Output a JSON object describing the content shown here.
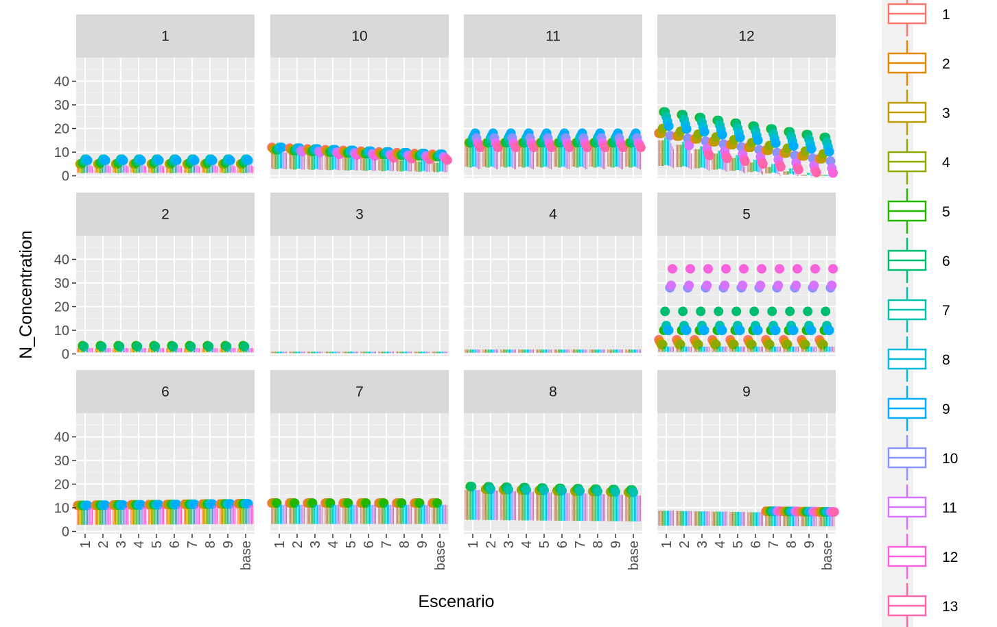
{
  "chart_data": {
    "type": "boxplot",
    "facet_by": "panel",
    "xlabel": "Escenario",
    "ylabel": "N_Concentration",
    "categories": [
      "1",
      "2",
      "3",
      "4",
      "5",
      "6",
      "7",
      "8",
      "9",
      "base"
    ],
    "yticks": [
      0,
      10,
      20,
      30,
      40
    ],
    "ylim": [
      -1,
      50
    ],
    "legend_position": "right",
    "legend": {
      "labels": [
        "1",
        "2",
        "3",
        "4",
        "5",
        "6",
        "7",
        "8",
        "9",
        "10",
        "11",
        "12",
        "13"
      ],
      "colors": [
        "#F8766D",
        "#E18A00",
        "#BE9C00",
        "#8CAB00",
        "#24B700",
        "#00BE70",
        "#00C1AB",
        "#00BBDA",
        "#00ACFC",
        "#8B93FF",
        "#D575FE",
        "#F962DD",
        "#FF65AC"
      ]
    },
    "facets": [
      {
        "panel": "1",
        "base": [
          3.5,
          4,
          3.5,
          3.2,
          3.2,
          3.3,
          3.3,
          3.5,
          3.5,
          4,
          3.5,
          3.5,
          3.2
        ],
        "outlier": [
          4.5,
          5,
          5,
          5,
          5.5,
          6,
          7,
          7,
          6.5,
          4.5,
          4.2,
          4,
          3.8
        ],
        "trend": 0
      },
      {
        "panel": "10",
        "base": [
          9,
          8.5,
          8,
          8,
          8,
          8,
          8.5,
          9,
          9,
          8.5,
          8,
          8,
          8
        ],
        "outlier": [
          12,
          11.5,
          11,
          11,
          11,
          11,
          12,
          12,
          12,
          11,
          10.5,
          10,
          9.5
        ],
        "trend": -0.4
      },
      {
        "panel": "11",
        "base": [
          11,
          11,
          11,
          10,
          10,
          10,
          11,
          11,
          11,
          10,
          9,
          8,
          8
        ],
        "outlier": [
          14,
          14,
          14,
          14,
          14,
          14,
          16,
          17,
          18,
          16,
          14,
          13,
          12
        ],
        "trend": 0
      },
      {
        "panel": "12",
        "base": [
          12,
          12,
          12,
          12,
          12,
          13,
          13,
          13,
          12,
          12,
          11,
          10,
          9
        ],
        "outlier": [
          18,
          18,
          18,
          20,
          27,
          27,
          25,
          23,
          21,
          17,
          14,
          12,
          11
        ],
        "trend": -1.5
      },
      {
        "panel": "2",
        "base": [
          2,
          2,
          2,
          2,
          2,
          2,
          2,
          2,
          2,
          2,
          2,
          2,
          2
        ],
        "outlier": [
          3,
          3,
          3,
          3,
          3.5,
          3.2,
          3,
          3,
          2.8,
          2.5,
          2.3,
          2.2,
          2.1
        ],
        "trend": 0
      },
      {
        "panel": "3",
        "base": [
          0.8,
          0.8,
          0.8,
          0.8,
          0.8,
          0.8,
          0.8,
          0.8,
          0.8,
          0.8,
          0.8,
          0.8,
          0.8
        ],
        "outlier": [
          1.2,
          1.2,
          1.2,
          1.2,
          1.2,
          1.2,
          1.2,
          1.2,
          1.2,
          1.2,
          1.2,
          1.2,
          1.2
        ],
        "trend": 0
      },
      {
        "panel": "4",
        "base": [
          1.5,
          1.5,
          1.5,
          1.5,
          1.5,
          1.5,
          1.5,
          1.5,
          1.5,
          1.5,
          1.5,
          1.5,
          1.5
        ],
        "outlier": [
          2,
          2,
          2,
          2,
          2,
          2,
          2,
          2,
          2,
          2,
          2,
          2,
          2
        ],
        "trend": 0
      },
      {
        "panel": "5",
        "base": [
          2.5,
          2.5,
          2.5,
          2.5,
          2.5,
          2.5,
          2.5,
          2.5,
          2.5,
          2.5,
          2.5,
          2.5,
          2.5
        ],
        "outlier": [
          6,
          5,
          4,
          4,
          10,
          18,
          12,
          10,
          10,
          28,
          29,
          36,
          3
        ],
        "trend": 0
      },
      {
        "panel": "6",
        "base": [
          8,
          8,
          8,
          8,
          8,
          8,
          8,
          8,
          8,
          8,
          8,
          8,
          8
        ],
        "outlier": [
          11,
          11,
          11,
          11,
          11,
          11,
          11,
          11,
          11,
          10,
          10,
          10,
          10
        ],
        "trend": 0.1
      },
      {
        "panel": "7",
        "base": [
          9,
          9,
          9,
          9,
          9,
          9,
          9,
          9,
          9,
          9,
          9,
          9,
          9
        ],
        "outlier": [
          12,
          12,
          12,
          12,
          12,
          11,
          11,
          11,
          10,
          10,
          10,
          10,
          10
        ],
        "trend": 0
      },
      {
        "panel": "8",
        "base": [
          14,
          14,
          14,
          14,
          14,
          14,
          14,
          14,
          14,
          14,
          14,
          14,
          14
        ],
        "outlier": [
          17,
          17,
          18,
          18,
          19,
          19,
          18,
          17,
          17,
          16,
          15,
          15,
          15
        ],
        "trend": -0.2
      },
      {
        "panel": "9",
        "base": [
          7,
          7,
          7,
          7,
          7,
          7,
          7,
          7,
          7,
          7,
          7,
          7,
          7
        ],
        "outlier": [
          9,
          9,
          9,
          9,
          9,
          9,
          9,
          9,
          9,
          9,
          9,
          9,
          9
        ],
        "trend": -0.1
      }
    ]
  }
}
